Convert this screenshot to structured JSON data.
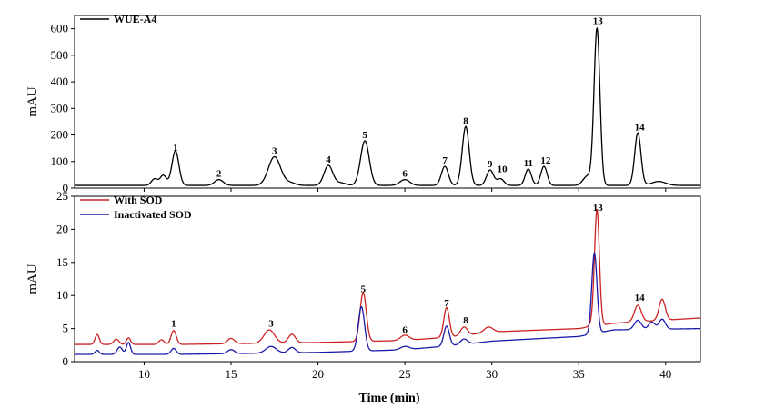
{
  "chart_data": [
    {
      "type": "line",
      "xlabel": "",
      "ylabel": "mAU",
      "xlim": [
        6,
        42
      ],
      "ylim": [
        0,
        650
      ],
      "xticks": [],
      "yticks": [
        0,
        100,
        200,
        300,
        400,
        500,
        600
      ],
      "legend_position": "top-left",
      "series": [
        {
          "name": "WUE-A4",
          "color": "#000000",
          "baseline": 10,
          "peaks": [
            {
              "x": 10.6,
              "h": 25,
              "w": 0.18
            },
            {
              "x": 11.1,
              "h": 38,
              "w": 0.18
            },
            {
              "x": 11.8,
              "h": 130,
              "w": 0.2
            },
            {
              "x": 14.3,
              "h": 22,
              "w": 0.25
            },
            {
              "x": 17.5,
              "h": 108,
              "w": 0.35
            },
            {
              "x": 18.4,
              "h": 10,
              "w": 0.3
            },
            {
              "x": 20.6,
              "h": 75,
              "w": 0.25
            },
            {
              "x": 21.3,
              "h": 10,
              "w": 0.3
            },
            {
              "x": 22.7,
              "h": 168,
              "w": 0.25
            },
            {
              "x": 25.0,
              "h": 22,
              "w": 0.28
            },
            {
              "x": 27.3,
              "h": 72,
              "w": 0.2
            },
            {
              "x": 28.5,
              "h": 222,
              "w": 0.2
            },
            {
              "x": 29.9,
              "h": 58,
              "w": 0.2
            },
            {
              "x": 30.5,
              "h": 25,
              "w": 0.2
            },
            {
              "x": 32.1,
              "h": 62,
              "w": 0.18
            },
            {
              "x": 33.0,
              "h": 72,
              "w": 0.18
            },
            {
              "x": 35.5,
              "h": 35,
              "w": 0.25
            },
            {
              "x": 36.05,
              "h": 590,
              "w": 0.17
            },
            {
              "x": 38.4,
              "h": 198,
              "w": 0.18
            },
            {
              "x": 39.6,
              "h": 15,
              "w": 0.4
            }
          ]
        }
      ],
      "annotations": [
        {
          "text": "1",
          "x": 11.8,
          "y": 140
        },
        {
          "text": "2",
          "x": 14.3,
          "y": 42
        },
        {
          "text": "3",
          "x": 17.5,
          "y": 128
        },
        {
          "text": "4",
          "x": 20.6,
          "y": 95
        },
        {
          "text": "5",
          "x": 22.7,
          "y": 188
        },
        {
          "text": "6",
          "x": 25.0,
          "y": 42
        },
        {
          "text": "7",
          "x": 27.3,
          "y": 92
        },
        {
          "text": "8",
          "x": 28.5,
          "y": 242
        },
        {
          "text": "9",
          "x": 29.9,
          "y": 78
        },
        {
          "text": "10",
          "x": 30.6,
          "y": 60
        },
        {
          "text": "11",
          "x": 32.1,
          "y": 82
        },
        {
          "text": "12",
          "x": 33.1,
          "y": 92
        },
        {
          "text": "13",
          "x": 36.1,
          "y": 618
        },
        {
          "text": "14",
          "x": 38.5,
          "y": 218
        }
      ]
    },
    {
      "type": "line",
      "xlabel": "Time (min)",
      "ylabel": "mAU",
      "xlim": [
        6,
        42
      ],
      "ylim": [
        0,
        25
      ],
      "xticks": [
        10,
        15,
        20,
        25,
        30,
        35,
        40
      ],
      "yticks": [
        0,
        5,
        10,
        15,
        20,
        25
      ],
      "legend_position": "top-left",
      "series": [
        {
          "name": "With SOD",
          "color": "#cc2222",
          "baseline_points": [
            [
              6,
              2.6
            ],
            [
              12,
              2.6
            ],
            [
              20,
              2.9
            ],
            [
              25,
              3.2
            ],
            [
              28,
              3.8
            ],
            [
              30,
              4.5
            ],
            [
              35,
              5.0
            ],
            [
              37,
              5.8
            ],
            [
              42,
              6.6
            ]
          ],
          "peaks": [
            {
              "x": 7.3,
              "h": 1.5,
              "w": 0.12
            },
            {
              "x": 8.4,
              "h": 0.8,
              "w": 0.15
            },
            {
              "x": 9.1,
              "h": 1.0,
              "w": 0.12
            },
            {
              "x": 11.0,
              "h": 0.7,
              "w": 0.15
            },
            {
              "x": 11.7,
              "h": 2.1,
              "w": 0.15
            },
            {
              "x": 15.0,
              "h": 0.8,
              "w": 0.2
            },
            {
              "x": 17.2,
              "h": 2.0,
              "w": 0.3
            },
            {
              "x": 18.5,
              "h": 1.3,
              "w": 0.2
            },
            {
              "x": 22.6,
              "h": 7.4,
              "w": 0.18
            },
            {
              "x": 25.0,
              "h": 0.8,
              "w": 0.25
            },
            {
              "x": 27.4,
              "h": 4.5,
              "w": 0.16
            },
            {
              "x": 28.4,
              "h": 1.3,
              "w": 0.2
            },
            {
              "x": 29.8,
              "h": 0.8,
              "w": 0.25
            },
            {
              "x": 35.9,
              "h": 0.8,
              "w": 0.2
            },
            {
              "x": 36.05,
              "h": 17.0,
              "w": 0.14
            },
            {
              "x": 38.4,
              "h": 2.5,
              "w": 0.2
            },
            {
              "x": 39.8,
              "h": 3.2,
              "w": 0.18
            }
          ]
        },
        {
          "name": "Inactivated SOD",
          "color": "#1a1aaa",
          "baseline_points": [
            [
              6,
              1.1
            ],
            [
              12,
              1.1
            ],
            [
              20,
              1.4
            ],
            [
              25,
              1.8
            ],
            [
              28,
              2.5
            ],
            [
              30,
              3.1
            ],
            [
              35,
              3.8
            ],
            [
              37,
              4.8
            ],
            [
              42,
              5.0
            ]
          ],
          "peaks": [
            {
              "x": 7.3,
              "h": 0.6,
              "w": 0.12
            },
            {
              "x": 8.6,
              "h": 1.1,
              "w": 0.15
            },
            {
              "x": 9.1,
              "h": 1.8,
              "w": 0.12
            },
            {
              "x": 11.7,
              "h": 0.9,
              "w": 0.15
            },
            {
              "x": 15.0,
              "h": 0.6,
              "w": 0.2
            },
            {
              "x": 17.3,
              "h": 1.0,
              "w": 0.3
            },
            {
              "x": 18.5,
              "h": 0.8,
              "w": 0.2
            },
            {
              "x": 22.5,
              "h": 6.7,
              "w": 0.18
            },
            {
              "x": 25.0,
              "h": 0.5,
              "w": 0.25
            },
            {
              "x": 27.4,
              "h": 3.0,
              "w": 0.16
            },
            {
              "x": 28.4,
              "h": 0.8,
              "w": 0.2
            },
            {
              "x": 35.9,
              "h": 12.2,
              "w": 0.15
            },
            {
              "x": 38.4,
              "h": 1.4,
              "w": 0.2
            },
            {
              "x": 39.2,
              "h": 1.1,
              "w": 0.18
            },
            {
              "x": 39.8,
              "h": 1.5,
              "w": 0.18
            }
          ]
        }
      ],
      "annotations": [
        {
          "text": "1",
          "x": 11.7,
          "y": 5.3
        },
        {
          "text": "3",
          "x": 17.3,
          "y": 5.3
        },
        {
          "text": "5",
          "x": 22.6,
          "y": 10.5
        },
        {
          "text": "6",
          "x": 25.0,
          "y": 4.3
        },
        {
          "text": "7",
          "x": 27.4,
          "y": 8.4
        },
        {
          "text": "8",
          "x": 28.5,
          "y": 5.8
        },
        {
          "text": "13",
          "x": 36.1,
          "y": 22.8
        },
        {
          "text": "14",
          "x": 38.5,
          "y": 9.2
        }
      ]
    }
  ]
}
